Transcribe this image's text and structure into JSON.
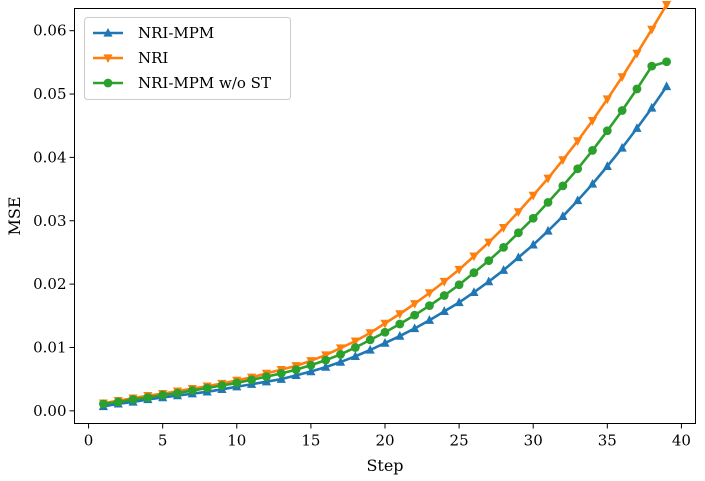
{
  "chart_data": {
    "type": "line",
    "xlabel": "Step",
    "ylabel": "MSE",
    "xlim": [
      -0.95,
      40.95
    ],
    "ylim": [
      -0.002,
      0.0635
    ],
    "xticks": [
      0,
      5,
      10,
      15,
      20,
      25,
      30,
      35,
      40
    ],
    "yticks": [
      0.0,
      0.01,
      0.02,
      0.03,
      0.04,
      0.05,
      0.06
    ],
    "xtick_labels": [
      "0",
      "5",
      "10",
      "15",
      "20",
      "25",
      "30",
      "35",
      "40"
    ],
    "ytick_labels": [
      "0.00",
      "0.01",
      "0.02",
      "0.03",
      "0.04",
      "0.05",
      "0.06"
    ],
    "grid": false,
    "legend_position": "top-left",
    "x": [
      1,
      2,
      3,
      4,
      5,
      6,
      7,
      8,
      9,
      10,
      11,
      12,
      13,
      14,
      15,
      16,
      17,
      18,
      19,
      20,
      21,
      22,
      23,
      24,
      25,
      26,
      27,
      28,
      29,
      30,
      31,
      32,
      33,
      34,
      35,
      36,
      37,
      38,
      39
    ],
    "series": [
      {
        "name": "NRI-MPM",
        "color": "#1f77b4",
        "marker": "triangle-up",
        "values": [
          0.0007,
          0.0011,
          0.0014,
          0.0018,
          0.0021,
          0.0024,
          0.0027,
          0.003,
          0.0034,
          0.0038,
          0.0042,
          0.0046,
          0.005,
          0.0056,
          0.0062,
          0.0069,
          0.0077,
          0.0086,
          0.0096,
          0.0107,
          0.0118,
          0.013,
          0.0143,
          0.0157,
          0.0171,
          0.0187,
          0.0204,
          0.0222,
          0.0242,
          0.0262,
          0.0284,
          0.0307,
          0.0332,
          0.0358,
          0.0386,
          0.0415,
          0.0446,
          0.0478,
          0.0512
        ]
      },
      {
        "name": "NRI",
        "color": "#ff7f0e",
        "marker": "triangle-down",
        "values": [
          0.0012,
          0.0016,
          0.002,
          0.0024,
          0.0027,
          0.0031,
          0.0035,
          0.0039,
          0.0043,
          0.0048,
          0.0053,
          0.0059,
          0.0065,
          0.0071,
          0.0079,
          0.0088,
          0.0099,
          0.011,
          0.0123,
          0.0138,
          0.0153,
          0.0169,
          0.0186,
          0.0204,
          0.0223,
          0.0244,
          0.0266,
          0.0289,
          0.0314,
          0.034,
          0.0367,
          0.0396,
          0.0426,
          0.0458,
          0.0492,
          0.0527,
          0.0564,
          0.0602,
          0.0641
        ]
      },
      {
        "name": "NRI-MPM w/o ST",
        "color": "#2ca02c",
        "marker": "circle",
        "values": [
          0.0011,
          0.0014,
          0.0018,
          0.0021,
          0.0025,
          0.0028,
          0.0032,
          0.0036,
          0.004,
          0.0044,
          0.0049,
          0.0054,
          0.0059,
          0.0065,
          0.0072,
          0.008,
          0.0089,
          0.01,
          0.0112,
          0.0124,
          0.0137,
          0.0151,
          0.0166,
          0.0182,
          0.0199,
          0.0218,
          0.0237,
          0.0258,
          0.0281,
          0.0304,
          0.0329,
          0.0355,
          0.0382,
          0.0411,
          0.0442,
          0.0474,
          0.0508,
          0.0544,
          0.0551
        ]
      }
    ]
  }
}
